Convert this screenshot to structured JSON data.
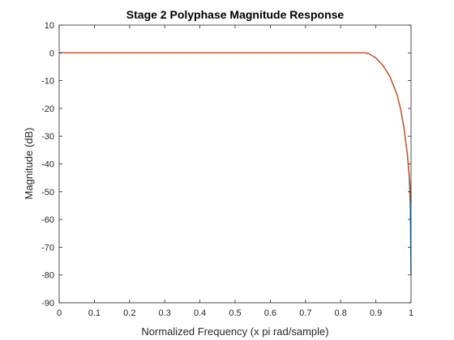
{
  "chart_data": {
    "type": "line",
    "title": "Stage 2 Polyphase Magnitude Response",
    "xlabel": "Normalized Frequency (x pi rad/sample)",
    "ylabel": "Magnitude (dB)",
    "xlim": [
      0,
      1
    ],
    "ylim": [
      -90,
      10
    ],
    "xticks": [
      0,
      0.1,
      0.2,
      0.3,
      0.4,
      0.5,
      0.6,
      0.7,
      0.8,
      0.9,
      1
    ],
    "xtick_labels": [
      "0",
      "0.1",
      "0.2",
      "0.3",
      "0.4",
      "0.5",
      "0.6",
      "0.7",
      "0.8",
      "0.9",
      "1"
    ],
    "yticks": [
      10,
      0,
      -10,
      -20,
      -30,
      -40,
      -50,
      -60,
      -70,
      -80,
      -90
    ],
    "ytick_labels": [
      "10",
      "0",
      "-10",
      "-20",
      "-30",
      "-40",
      "-50",
      "-60",
      "-70",
      "-80",
      "-90"
    ],
    "grid": false,
    "legend": "none",
    "series": [
      {
        "color": "#0072BD",
        "x": [
          0,
          0.1,
          0.2,
          0.3,
          0.4,
          0.5,
          0.6,
          0.7,
          0.8,
          0.85,
          0.87,
          0.88,
          0.9,
          0.92,
          0.94,
          0.96,
          0.97,
          0.98,
          0.99,
          0.995,
          0.998,
          1.0
        ],
        "y": [
          0,
          0,
          0,
          0,
          0,
          0,
          0,
          0,
          0,
          0,
          0,
          -0.3,
          -1.8,
          -4.5,
          -8.5,
          -15,
          -20,
          -27,
          -37,
          -45,
          -55,
          -80
        ]
      },
      {
        "color": "#D95319",
        "x": [
          0,
          0.1,
          0.2,
          0.3,
          0.4,
          0.5,
          0.6,
          0.7,
          0.8,
          0.85,
          0.87,
          0.88,
          0.9,
          0.92,
          0.94,
          0.96,
          0.97,
          0.98,
          0.99,
          0.995,
          0.998,
          1.0
        ],
        "y": [
          0,
          0,
          0,
          0,
          0,
          0,
          0,
          0,
          0,
          0,
          0,
          -0.3,
          -1.8,
          -4.5,
          -8.5,
          -15,
          -20,
          -27,
          -37,
          -44,
          -49,
          -54
        ]
      }
    ]
  }
}
